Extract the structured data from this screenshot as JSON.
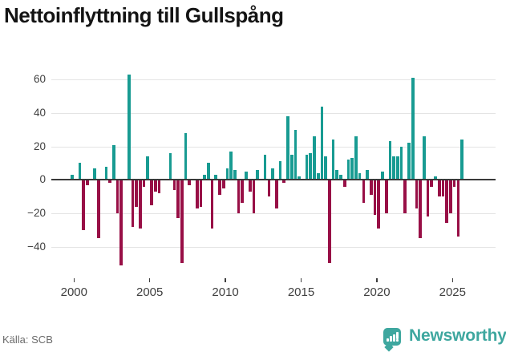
{
  "title": "Nettoinflyttning till Gullspång",
  "source": "Källa: SCB",
  "brand": {
    "name": "Newsworthy",
    "logo_icon": "speech-bubble-bar-chart-icon",
    "color": "#3EA79F"
  },
  "chart_data": {
    "type": "bar",
    "title": "Nettoinflyttning till Gullspång",
    "frequency": "quarterly",
    "start_period": "1999 Q4",
    "end_period": "2025 Q3",
    "values": [
      3,
      0,
      10,
      -30,
      -3,
      0,
      7,
      -35,
      0,
      8,
      -2,
      21,
      -20,
      -51,
      0,
      63,
      -28,
      -16,
      -29,
      -4,
      14,
      -15,
      -7,
      -8,
      0,
      0,
      16,
      -6,
      -23,
      -50,
      28,
      -3,
      0,
      -17,
      -16,
      3,
      10,
      -29,
      3,
      -9,
      -5,
      7,
      17,
      6,
      -20,
      -14,
      5,
      -7,
      -20,
      6,
      0,
      15,
      -10,
      7,
      -17,
      11,
      -2,
      38,
      15,
      30,
      2,
      0,
      15,
      16,
      26,
      4,
      44,
      14,
      -50,
      24,
      6,
      3,
      -4,
      12,
      13,
      26,
      4,
      -14,
      6,
      -9,
      -21,
      -29,
      5,
      -20,
      23,
      14,
      14,
      20,
      -20,
      22,
      61,
      -17,
      -35,
      26,
      -22,
      -4,
      2,
      -10,
      -10,
      -26,
      -20,
      -4,
      -34,
      24
    ],
    "x_ticks": [
      2000,
      2005,
      2010,
      2015,
      2020,
      2025
    ],
    "x_tick_labels": [
      "2000",
      "2005",
      "2010",
      "2015",
      "2020",
      "2025"
    ],
    "y_ticks": [
      60,
      40,
      20,
      0,
      -20,
      -40
    ],
    "y_tick_labels": [
      "60",
      "40",
      "20",
      "0",
      "−20",
      "−40"
    ],
    "ylim": [
      -56,
      67
    ],
    "xlim": [
      1998.6,
      2027.8
    ],
    "grid": true,
    "legend": false,
    "positive_color": "#189B92",
    "negative_color": "#980F46"
  }
}
